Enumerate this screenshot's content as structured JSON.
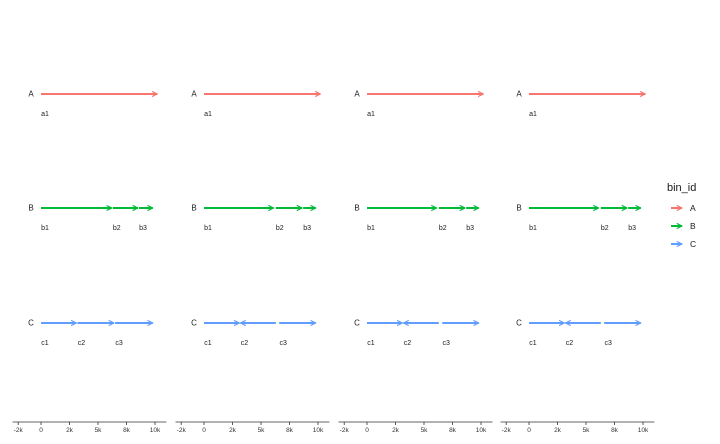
{
  "chart_data": {
    "type": "gene-arrow-map",
    "legend": {
      "title": "bin_id",
      "entries": [
        {
          "name": "A",
          "color": "#F8766D"
        },
        {
          "name": "B",
          "color": "#00BA38"
        },
        {
          "name": "C",
          "color": "#619CFF"
        }
      ]
    },
    "x_axis": {
      "xlim": [
        -2000,
        10500
      ],
      "ticks": [
        {
          "value": -2000,
          "label": "-2k"
        },
        {
          "value": 0,
          "label": "0"
        },
        {
          "value": 2500,
          "label": "2k"
        },
        {
          "value": 5000,
          "label": "5k"
        },
        {
          "value": 7500,
          "label": "8k"
        },
        {
          "value": 10000,
          "label": "10k"
        }
      ]
    },
    "panels": [
      {
        "tracks": [
          {
            "seq": "A",
            "bin": "A",
            "features": [
              {
                "label": "a1",
                "start": 0,
                "end": 10200,
                "strand": 1
              }
            ]
          },
          {
            "seq": "B",
            "bin": "B",
            "features": [
              {
                "label": "b1",
                "start": 0,
                "end": 6200,
                "strand": 1
              },
              {
                "label": "b2",
                "start": 6300,
                "end": 8500,
                "strand": 1
              },
              {
                "label": "b3",
                "start": 8600,
                "end": 9800,
                "strand": 1
              }
            ]
          },
          {
            "seq": "C",
            "bin": "C",
            "features": [
              {
                "label": "c1",
                "start": 0,
                "end": 3100,
                "strand": 1
              },
              {
                "label": "c2",
                "start": 3200,
                "end": 6400,
                "strand": 1
              },
              {
                "label": "c3",
                "start": 6500,
                "end": 9800,
                "strand": 1
              }
            ]
          }
        ]
      },
      {
        "tracks": [
          {
            "seq": "A",
            "bin": "A",
            "features": [
              {
                "label": "a1",
                "start": 0,
                "end": 10200,
                "strand": 1
              }
            ]
          },
          {
            "seq": "B",
            "bin": "B",
            "features": [
              {
                "label": "b1",
                "start": 0,
                "end": 6100,
                "strand": 1
              },
              {
                "label": "b2",
                "start": 6300,
                "end": 8600,
                "strand": 1
              },
              {
                "label": "b3",
                "start": 8700,
                "end": 9800,
                "strand": 1
              }
            ]
          },
          {
            "seq": "C",
            "bin": "C",
            "features": [
              {
                "label": "c1",
                "start": 0,
                "end": 3100,
                "strand": 1
              },
              {
                "label": "c2",
                "start": 3200,
                "end": 6300,
                "strand": -1
              },
              {
                "label": "c3",
                "start": 6600,
                "end": 9800,
                "strand": 1
              }
            ]
          }
        ]
      },
      {
        "tracks": [
          {
            "seq": "A",
            "bin": "A",
            "features": [
              {
                "label": "a1",
                "start": 0,
                "end": 10200,
                "strand": 1
              }
            ]
          },
          {
            "seq": "B",
            "bin": "B",
            "features": [
              {
                "label": "b1",
                "start": 0,
                "end": 6100,
                "strand": 1
              },
              {
                "label": "b2",
                "start": 6300,
                "end": 8600,
                "strand": 1
              },
              {
                "label": "b3",
                "start": 8700,
                "end": 9800,
                "strand": 1
              }
            ]
          },
          {
            "seq": "C",
            "bin": "C",
            "features": [
              {
                "label": "c1",
                "start": 0,
                "end": 3100,
                "strand": 1
              },
              {
                "label": "c2",
                "start": 3200,
                "end": 6300,
                "strand": -1
              },
              {
                "label": "c3",
                "start": 6600,
                "end": 9800,
                "strand": 1
              }
            ]
          }
        ]
      },
      {
        "tracks": [
          {
            "seq": "A",
            "bin": "A",
            "features": [
              {
                "label": "a1",
                "start": 0,
                "end": 10200,
                "strand": 1
              }
            ]
          },
          {
            "seq": "B",
            "bin": "B",
            "features": [
              {
                "label": "b1",
                "start": 0,
                "end": 6100,
                "strand": 1
              },
              {
                "label": "b2",
                "start": 6300,
                "end": 8600,
                "strand": 1
              },
              {
                "label": "b3",
                "start": 8700,
                "end": 9800,
                "strand": 1
              }
            ]
          },
          {
            "seq": "C",
            "bin": "C",
            "features": [
              {
                "label": "c1",
                "start": 0,
                "end": 3100,
                "strand": 1
              },
              {
                "label": "c2",
                "start": 3200,
                "end": 6300,
                "strand": -1
              },
              {
                "label": "c3",
                "start": 6600,
                "end": 9800,
                "strand": 1
              }
            ]
          }
        ]
      }
    ]
  }
}
